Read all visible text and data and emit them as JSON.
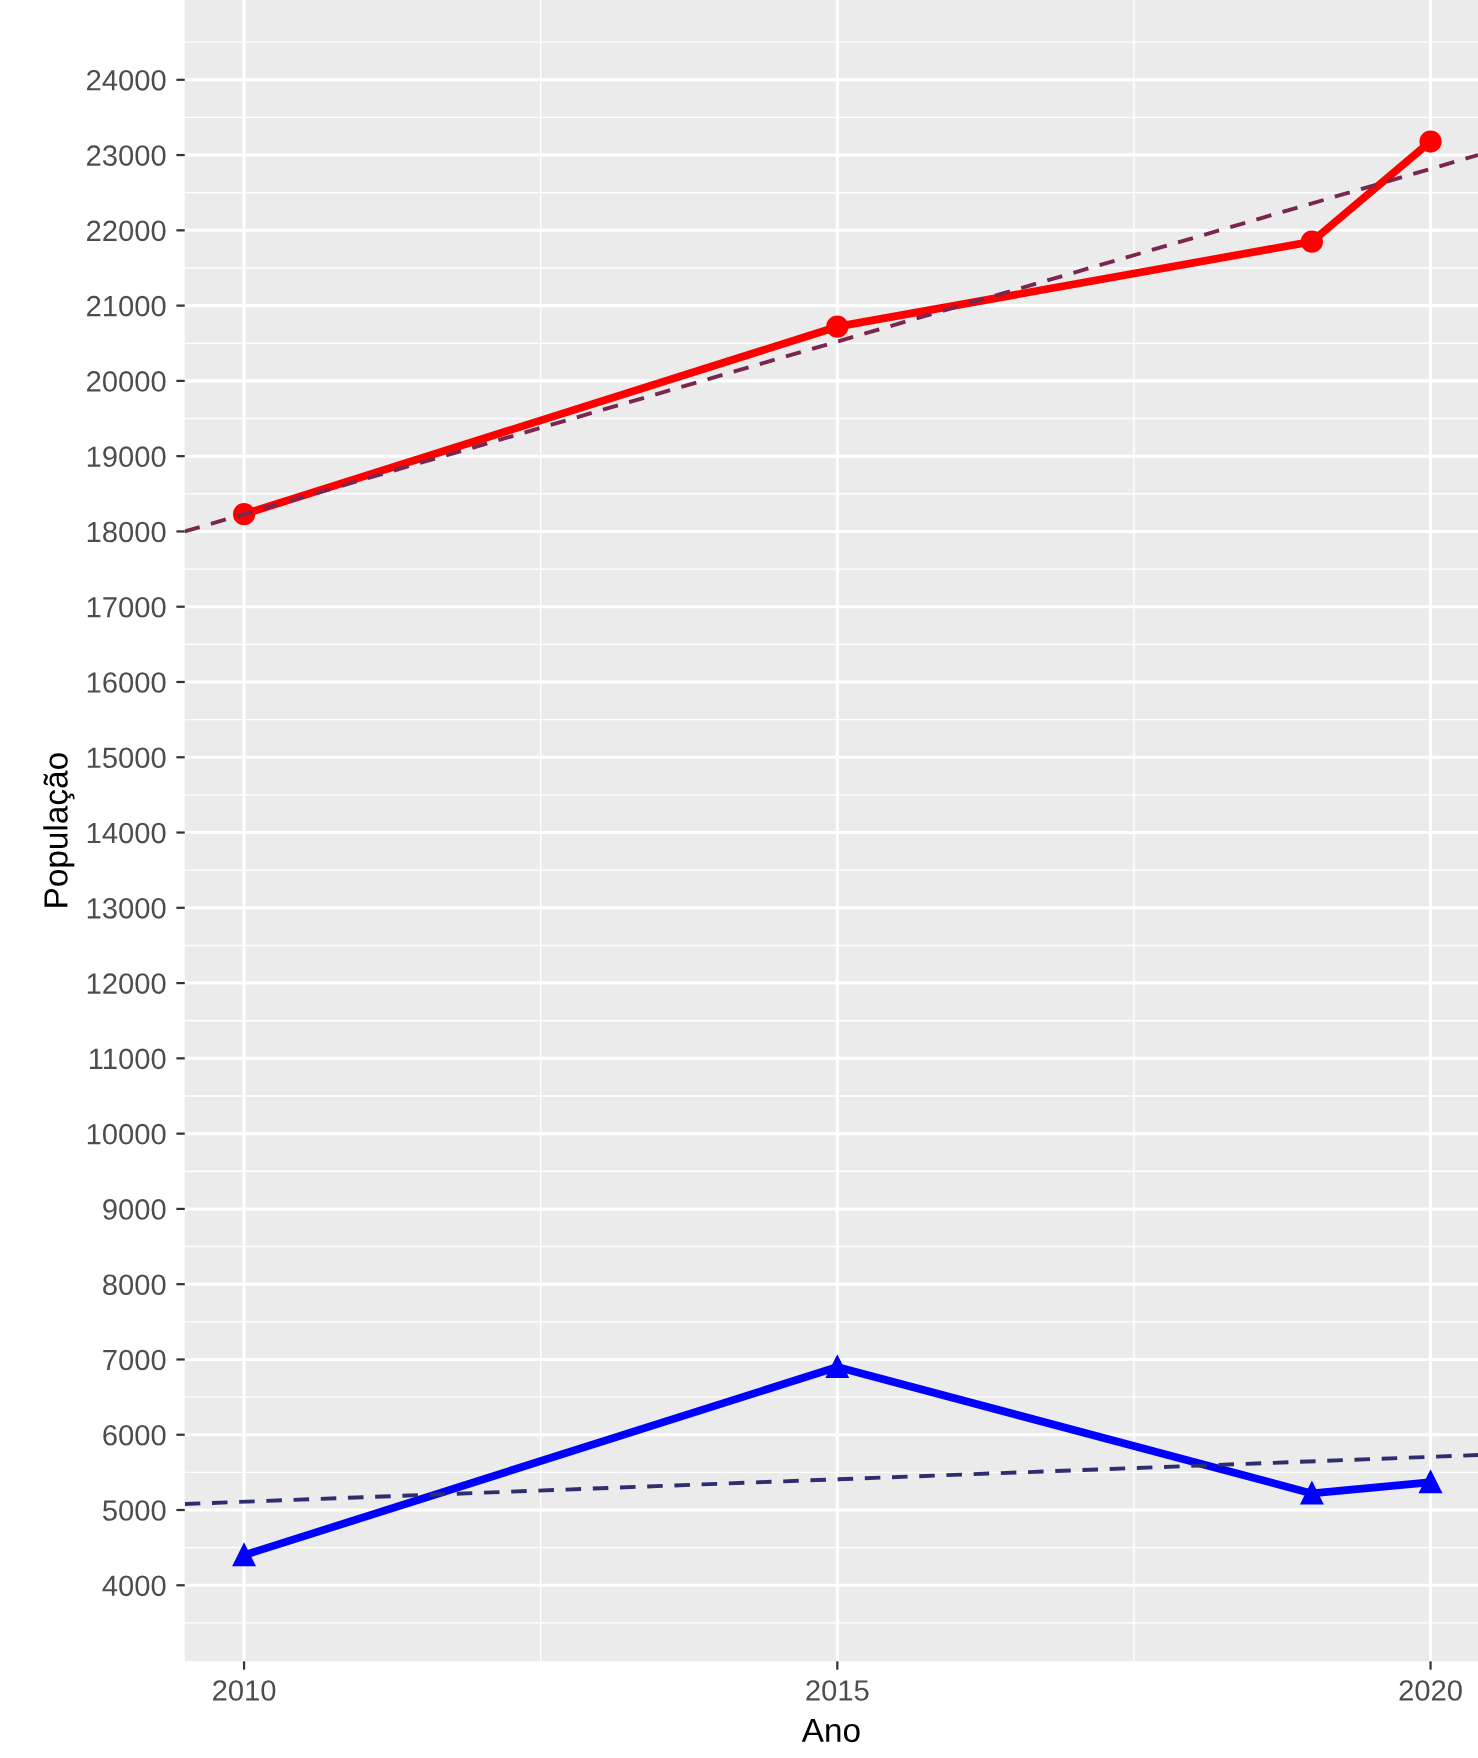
{
  "chart_data": {
    "type": "line",
    "xlabel": "Ano",
    "ylabel": "População",
    "grid": true,
    "legend": false,
    "xlim": [
      2009.5,
      2020.4
    ],
    "xticks": [
      2010,
      2015,
      2020
    ],
    "ylim": [
      2990,
      25060
    ],
    "yticks": [
      4000,
      5000,
      6000,
      7000,
      8000,
      9000,
      10000,
      11000,
      12000,
      13000,
      14000,
      15000,
      16000,
      17000,
      18000,
      19000,
      20000,
      21000,
      22000,
      23000,
      24000
    ],
    "series": [
      {
        "color": "#ff0000",
        "x": [
          2010,
          2015,
          2019,
          2020
        ],
        "values": [
          18230,
          20720,
          21850,
          23180
        ],
        "marker": "circle",
        "line_style": "solid"
      },
      {
        "color": "#0000ff",
        "x": [
          2010,
          2015,
          2019,
          2020
        ],
        "values": [
          4400,
          6900,
          5220,
          5370
        ],
        "marker": "triangle",
        "line_style": "solid"
      },
      {
        "color": "#7a2650",
        "x": [
          2009.5,
          2020.4
        ],
        "values": [
          18000,
          23000
        ],
        "marker": "none",
        "line_style": "dashed"
      },
      {
        "color": "#2e2e6e",
        "x": [
          2009.5,
          2020.4
        ],
        "values": [
          5080,
          5730
        ],
        "marker": "none",
        "line_style": "dashed"
      }
    ]
  }
}
